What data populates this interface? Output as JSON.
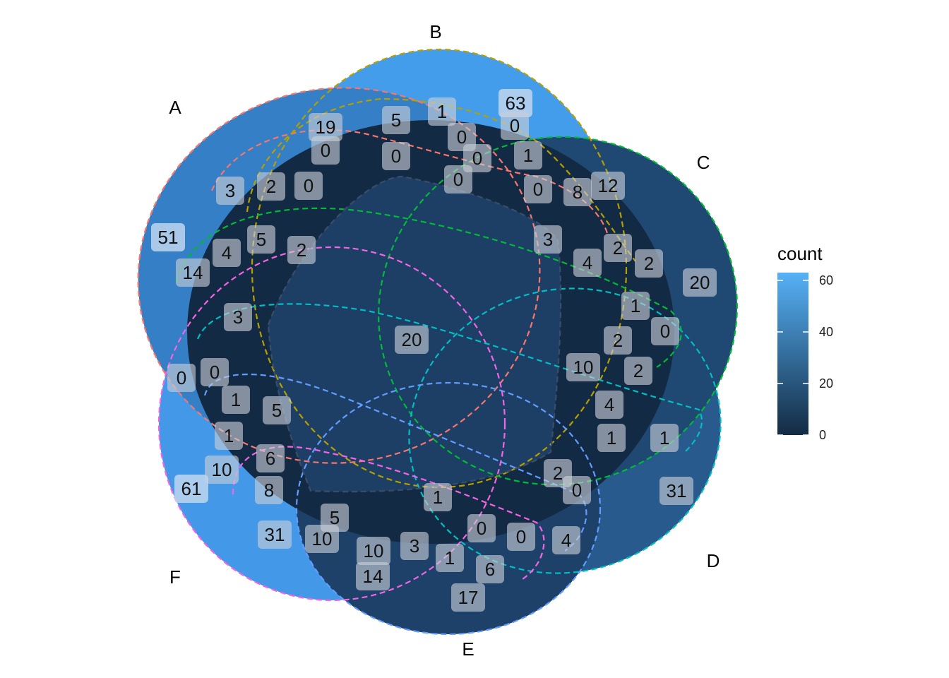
{
  "chart_data": {
    "type": "venn",
    "sets": [
      {
        "name": "A",
        "count": 51
      },
      {
        "name": "B",
        "count": 63
      },
      {
        "name": "C",
        "count": 20
      },
      {
        "name": "D",
        "count": 31
      },
      {
        "name": "E",
        "count": 17
      },
      {
        "name": "F",
        "count": 61
      }
    ],
    "colors": {
      "A": "#F8766D",
      "B": "#B79F00",
      "C": "#00BA38",
      "D": "#00BFC4",
      "E": "#619CFF",
      "F": "#F564E3"
    },
    "intersection_counts": [
      19,
      5,
      1,
      63,
      0,
      0,
      0,
      0,
      0,
      1,
      0,
      3,
      2,
      0,
      0,
      8,
      12,
      51,
      4,
      5,
      2,
      3,
      14,
      4,
      2,
      20,
      2,
      3,
      1,
      20,
      0,
      0,
      2,
      10,
      2,
      0,
      1,
      5,
      4,
      1,
      1,
      1,
      6,
      10,
      8,
      2,
      61,
      0,
      31,
      1,
      5,
      31,
      10,
      0,
      0,
      4,
      10,
      3,
      1,
      6,
      14,
      17
    ],
    "legend": {
      "title": "count",
      "ticks": [
        0,
        20,
        40,
        60
      ],
      "min": 0,
      "max": 63
    }
  }
}
